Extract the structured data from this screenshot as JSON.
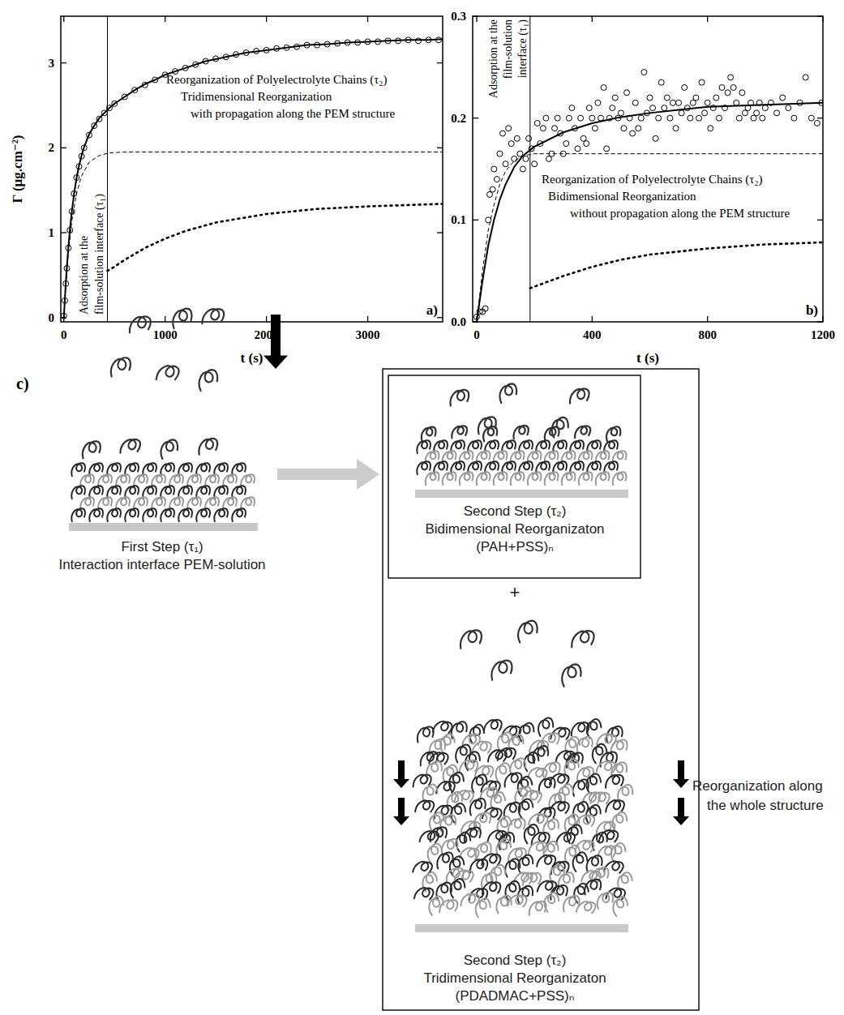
{
  "chart_data": [
    {
      "type": "line",
      "panel_label": "a)",
      "xlabel": "t  (s)",
      "ylabel": "Γ (µg.cm⁻²)",
      "xlim": [
        -30,
        3740
      ],
      "ylim": [
        -0.05,
        3.55
      ],
      "xticks": [
        0,
        1000,
        2000,
        3000
      ],
      "yticks": [
        0,
        1,
        2,
        3
      ],
      "series": [
        {
          "type": "scatter",
          "marker": "circle-open",
          "color": "#000000",
          "x": [
            0,
            10,
            20,
            30,
            45,
            60,
            80,
            100,
            125,
            150,
            175,
            200,
            250,
            300,
            350,
            400,
            450,
            500,
            600,
            700,
            800,
            900,
            1000,
            1100,
            1200,
            1300,
            1400,
            1500,
            1600,
            1700,
            1800,
            1900,
            2000,
            2100,
            2200,
            2300,
            2400,
            2500,
            2600,
            2700,
            2800,
            2900,
            3000,
            3100,
            3200,
            3300,
            3400,
            3500,
            3600,
            3700
          ],
          "values": [
            0.02,
            0.2,
            0.4,
            0.58,
            0.82,
            1.03,
            1.25,
            1.46,
            1.65,
            1.78,
            1.9,
            2.0,
            2.15,
            2.26,
            2.34,
            2.41,
            2.47,
            2.52,
            2.6,
            2.68,
            2.74,
            2.8,
            2.86,
            2.9,
            2.94,
            2.98,
            3.02,
            3.05,
            3.07,
            3.1,
            3.12,
            3.14,
            3.15,
            3.17,
            3.18,
            3.19,
            3.21,
            3.21,
            3.22,
            3.23,
            3.24,
            3.24,
            3.25,
            3.25,
            3.26,
            3.26,
            3.27,
            3.26,
            3.27,
            3.27
          ]
        },
        {
          "type": "line",
          "line_style": "solid",
          "color": "#000000",
          "x": [
            0,
            10,
            20,
            30,
            45,
            60,
            80,
            100,
            125,
            150,
            175,
            200,
            250,
            300,
            350,
            400,
            450,
            500,
            600,
            700,
            800,
            900,
            1000,
            1200,
            1400,
            1600,
            1800,
            2000,
            2200,
            2400,
            2600,
            2800,
            3000,
            3200,
            3400,
            3600,
            3740
          ],
          "values": [
            0,
            0.22,
            0.42,
            0.6,
            0.83,
            1.04,
            1.26,
            1.45,
            1.64,
            1.79,
            1.91,
            2.01,
            2.16,
            2.26,
            2.35,
            2.41,
            2.47,
            2.52,
            2.6,
            2.68,
            2.75,
            2.8,
            2.86,
            2.94,
            3.02,
            3.07,
            3.12,
            3.15,
            3.18,
            3.21,
            3.22,
            3.24,
            3.25,
            3.26,
            3.27,
            3.27,
            3.28
          ]
        },
        {
          "type": "line",
          "line_style": "dashed",
          "color": "#000000",
          "x": [
            0,
            20,
            45,
            80,
            125,
            175,
            250,
            350,
            450,
            600,
            3740
          ],
          "values": [
            0,
            0.39,
            0.77,
            1.15,
            1.46,
            1.67,
            1.83,
            1.91,
            1.94,
            1.95,
            1.95
          ]
        },
        {
          "type": "line",
          "line_style": "dotted",
          "color": "#000000",
          "x": [
            430,
            500,
            600,
            800,
            1000,
            1200,
            1500,
            2000,
            2500,
            3000,
            3500,
            3740
          ],
          "values": [
            0.55,
            0.6,
            0.68,
            0.82,
            0.93,
            1.02,
            1.12,
            1.22,
            1.28,
            1.31,
            1.33,
            1.34
          ]
        }
      ],
      "annotations": [
        {
          "x": 430,
          "lines": [
            "Adsorption at the",
            "film-solution interface (τ₁)"
          ]
        },
        {
          "lines": [
            "Reorganization of Polyelectrolyte Chains (τ₂)",
            "Tridimensional Reorganization",
            "with propagation along the PEM structure"
          ]
        }
      ]
    },
    {
      "type": "line",
      "panel_label": "b)",
      "xlabel": "t  (s)",
      "xlim": [
        -14,
        1200
      ],
      "ylim": [
        0,
        0.3
      ],
      "xticks": [
        0,
        400,
        800,
        1200
      ],
      "yticks": [
        {
          "value": 0,
          "label": "0.0"
        },
        0.1,
        0.2,
        0.3
      ],
      "series": [
        {
          "type": "scatter",
          "marker": "circle-open",
          "color": "#000000",
          "x": [
            0,
            10,
            20,
            30,
            40,
            45,
            55,
            60,
            70,
            80,
            90,
            100,
            110,
            120,
            130,
            140,
            150,
            160,
            170,
            180,
            190,
            200,
            210,
            220,
            230,
            240,
            250,
            260,
            270,
            280,
            290,
            300,
            310,
            320,
            330,
            340,
            350,
            360,
            370,
            380,
            390,
            400,
            410,
            420,
            430,
            440,
            450,
            460,
            470,
            480,
            490,
            500,
            510,
            520,
            530,
            540,
            550,
            560,
            570,
            580,
            590,
            600,
            610,
            620,
            630,
            640,
            650,
            660,
            670,
            680,
            690,
            700,
            710,
            720,
            730,
            740,
            750,
            760,
            770,
            780,
            790,
            800,
            810,
            820,
            830,
            840,
            850,
            860,
            870,
            880,
            890,
            900,
            910,
            920,
            930,
            940,
            950,
            960,
            970,
            980,
            990,
            1000,
            1020,
            1040,
            1060,
            1080,
            1100,
            1120,
            1140,
            1160,
            1180,
            1195
          ],
          "values": [
            0.005,
            0.01,
            0.01,
            0.013,
            0.1,
            0.125,
            0.13,
            0.15,
            0.14,
            0.165,
            0.185,
            0.155,
            0.19,
            0.175,
            0.16,
            0.18,
            0.165,
            0.15,
            0.16,
            0.18,
            0.17,
            0.155,
            0.195,
            0.175,
            0.19,
            0.2,
            0.16,
            0.165,
            0.19,
            0.2,
            0.185,
            0.165,
            0.175,
            0.2,
            0.21,
            0.19,
            0.17,
            0.2,
            0.18,
            0.175,
            0.21,
            0.2,
            0.19,
            0.215,
            0.2,
            0.23,
            0.17,
            0.2,
            0.21,
            0.22,
            0.2,
            0.205,
            0.19,
            0.225,
            0.2,
            0.185,
            0.215,
            0.19,
            0.2,
            0.245,
            0.205,
            0.22,
            0.21,
            0.18,
            0.2,
            0.235,
            0.21,
            0.22,
            0.2,
            0.215,
            0.19,
            0.215,
            0.205,
            0.23,
            0.21,
            0.2,
            0.215,
            0.22,
            0.2,
            0.235,
            0.205,
            0.215,
            0.19,
            0.21,
            0.22,
            0.2,
            0.23,
            0.21,
            0.225,
            0.24,
            0.23,
            0.215,
            0.2,
            0.225,
            0.205,
            0.21,
            0.215,
            0.2,
            0.205,
            0.215,
            0.2,
            0.21,
            0.215,
            0.205,
            0.22,
            0.21,
            0.2,
            0.215,
            0.24,
            0.2,
            0.195,
            0.215
          ]
        },
        {
          "type": "line",
          "line_style": "solid",
          "color": "#000000",
          "x": [
            0,
            20,
            40,
            60,
            80,
            100,
            130,
            160,
            200,
            300,
            400,
            500,
            600,
            700,
            800,
            900,
            1000,
            1100,
            1200
          ],
          "values": [
            0,
            0.04,
            0.075,
            0.1,
            0.12,
            0.135,
            0.152,
            0.163,
            0.172,
            0.186,
            0.195,
            0.201,
            0.205,
            0.208,
            0.211,
            0.212,
            0.213,
            0.214,
            0.215
          ]
        },
        {
          "type": "line",
          "line_style": "dashed",
          "color": "#000000",
          "x": [
            0,
            20,
            40,
            60,
            80,
            100,
            130,
            160,
            200,
            300,
            1200
          ],
          "values": [
            0,
            0.05,
            0.09,
            0.115,
            0.135,
            0.148,
            0.158,
            0.163,
            0.165,
            0.165,
            0.165
          ]
        },
        {
          "type": "line",
          "line_style": "dotted",
          "color": "#000000",
          "x": [
            185,
            300,
            400,
            500,
            600,
            800,
            1000,
            1200
          ],
          "values": [
            0.033,
            0.045,
            0.054,
            0.061,
            0.066,
            0.072,
            0.076,
            0.078
          ]
        }
      ],
      "annotations": [
        {
          "x": 185,
          "lines": [
            "Adsorption at the",
            "film-solution",
            "interface (τ₁)"
          ]
        },
        {
          "lines": [
            "Reorganization of Polyelectrolyte Chains (τ₂)",
            "Bidimensional Reorganization",
            "without propagation along the PEM structure"
          ]
        }
      ]
    }
  ],
  "diagram": {
    "label": "c)",
    "first_step": {
      "title": "First Step (τ₁)",
      "caption": "Interaction interface PEM-solution"
    },
    "second_step_bidimensional": {
      "title": "Second Step (τ₂)",
      "caption": "Bidimensional Reorganizaton",
      "system": "(PAH+PSS)ₙ"
    },
    "plus": "+",
    "second_step_tridimensional": {
      "title": "Second Step (τ₂)",
      "caption": "Tridimensional Reorganizaton",
      "system": "(PDADMAC+PSS)ₙ",
      "note": [
        "Reorganization along",
        "the whole structure"
      ]
    }
  }
}
